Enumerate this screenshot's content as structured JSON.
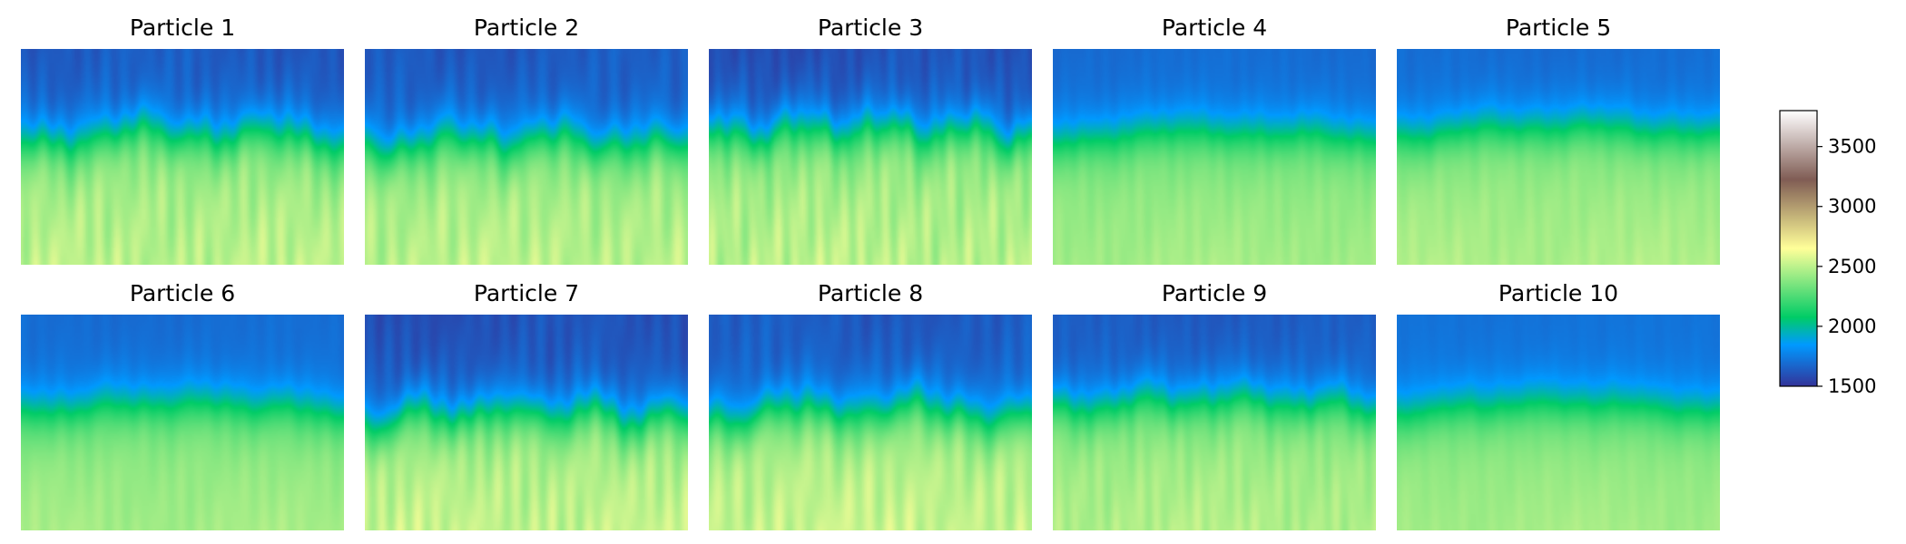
{
  "chart_data": {
    "type": "heatmap",
    "layout": "2 rows x 5 columns of velocity-style field images with shared colorbar",
    "colormap": "terrain",
    "vmin": 1500,
    "vmax": 3800,
    "panels": [
      {
        "title": "Particle 1",
        "top_value": 1650,
        "bottom_value": 2450,
        "transition_depth": 0.42,
        "roughness": 0.9,
        "seed": 11
      },
      {
        "title": "Particle 2",
        "top_value": 1650,
        "bottom_value": 2450,
        "transition_depth": 0.45,
        "roughness": 0.9,
        "seed": 23
      },
      {
        "title": "Particle 3",
        "top_value": 1620,
        "bottom_value": 2450,
        "transition_depth": 0.4,
        "roughness": 1.0,
        "seed": 37
      },
      {
        "title": "Particle 4",
        "top_value": 1700,
        "bottom_value": 2400,
        "transition_depth": 0.42,
        "roughness": 0.35,
        "seed": 41
      },
      {
        "title": "Particle 5",
        "top_value": 1700,
        "bottom_value": 2420,
        "transition_depth": 0.4,
        "roughness": 0.35,
        "seed": 53
      },
      {
        "title": "Particle 6",
        "top_value": 1700,
        "bottom_value": 2400,
        "transition_depth": 0.45,
        "roughness": 0.35,
        "seed": 67
      },
      {
        "title": "Particle 7",
        "top_value": 1620,
        "bottom_value": 2470,
        "transition_depth": 0.48,
        "roughness": 0.9,
        "seed": 71
      },
      {
        "title": "Particle 8",
        "top_value": 1650,
        "bottom_value": 2480,
        "transition_depth": 0.47,
        "roughness": 0.9,
        "seed": 83
      },
      {
        "title": "Particle 9",
        "top_value": 1650,
        "bottom_value": 2430,
        "transition_depth": 0.43,
        "roughness": 0.6,
        "seed": 97
      },
      {
        "title": "Particle 10",
        "top_value": 1720,
        "bottom_value": 2400,
        "transition_depth": 0.45,
        "roughness": 0.25,
        "seed": 101
      }
    ],
    "colorbar": {
      "ticks": [
        1500,
        2000,
        2500,
        3000,
        3500
      ],
      "tick_labels": [
        "1500",
        "2000",
        "2500",
        "3000",
        "3500"
      ],
      "range": [
        1500,
        3800
      ]
    }
  }
}
